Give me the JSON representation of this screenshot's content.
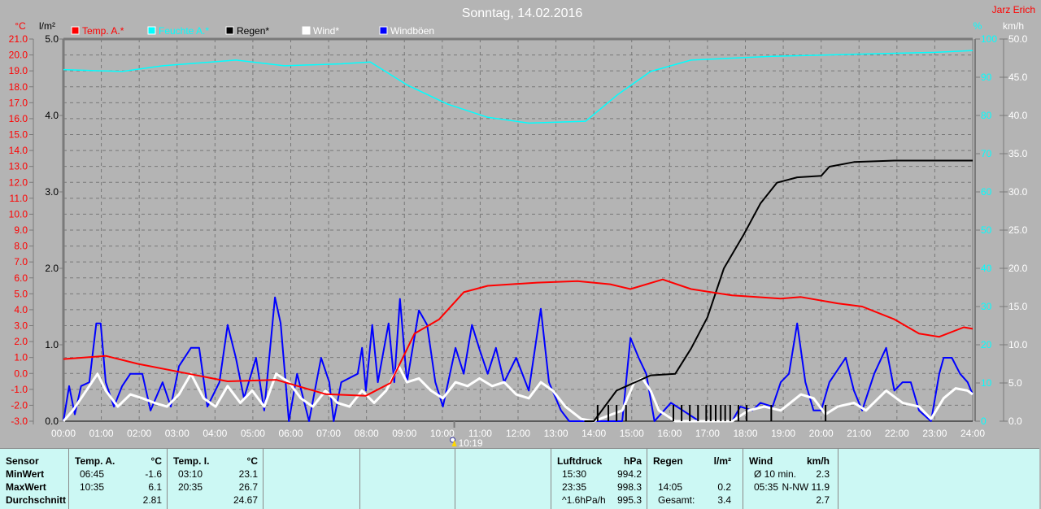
{
  "header": {
    "title": "Sonntag, 14.02.2016",
    "author": "Jarz Erich"
  },
  "colors": {
    "temp": "#ff0000",
    "humidity": "#00ffff",
    "rain": "#000000",
    "wind": "#ffffff",
    "gusts": "#0000ff",
    "background": "#b4b4b4",
    "table": "#ccf8f4"
  },
  "chart_data": {
    "type": "line",
    "title": "Sonntag, 14.02.2016",
    "grid": true,
    "legend_placement": "top",
    "x_range": [
      "00:00",
      "24:00"
    ],
    "x_ticks": [
      "00:00",
      "01:00",
      "02:00",
      "03:00",
      "04:00",
      "05:00",
      "06:00",
      "07:00",
      "08:00",
      "09:00",
      "10:00",
      "11:00",
      "12:00",
      "13:00",
      "14:00",
      "15:00",
      "16:00",
      "17:00",
      "18:00",
      "19:00",
      "20:00",
      "21:00",
      "22:00",
      "23:00",
      "24:00"
    ],
    "axes": {
      "temp": {
        "unit": "°C",
        "range": [
          -3.0,
          21.0
        ],
        "ticks": [
          "21.0",
          "20.0",
          "19.0",
          "18.0",
          "17.0",
          "16.0",
          "15.0",
          "14.0",
          "13.0",
          "12.0",
          "11.0",
          "10.0",
          "9.0",
          "8.0",
          "7.0",
          "6.0",
          "5.0",
          "4.0",
          "3.0",
          "2.0",
          "1.0",
          "0.0",
          "-1.0",
          "-2.0",
          "-3.0"
        ]
      },
      "rain": {
        "unit": "l/m²",
        "range": [
          0,
          5.0
        ],
        "ticks": [
          "5.0",
          "4.0",
          "3.0",
          "2.0",
          "1.0",
          "0.0"
        ]
      },
      "humidity": {
        "unit": "%",
        "range": [
          0,
          100
        ],
        "ticks": [
          "100",
          "90",
          "80",
          "70",
          "60",
          "50",
          "40",
          "30",
          "20",
          "10",
          "0"
        ]
      },
      "wind": {
        "unit": "km/h",
        "range": [
          0,
          50.0
        ],
        "ticks": [
          "50.0",
          "45.0",
          "40.0",
          "35.0",
          "30.0",
          "25.0",
          "20.0",
          "15.0",
          "10.0",
          "5.0",
          "0.0"
        ]
      }
    },
    "series": [
      {
        "name": "Temp. A.*",
        "axis": "temp",
        "color": "#ff0000",
        "points": [
          [
            "00:00",
            0.9
          ],
          [
            "01:07",
            1.1
          ],
          [
            "01:58",
            0.6
          ],
          [
            "03:16",
            0.0
          ],
          [
            "04:20",
            -0.5
          ],
          [
            "05:37",
            -0.4
          ],
          [
            "06:55",
            -1.3
          ],
          [
            "07:59",
            -1.4
          ],
          [
            "08:38",
            -0.6
          ],
          [
            "09:16",
            2.5
          ],
          [
            "09:55",
            3.4
          ],
          [
            "10:34",
            5.1
          ],
          [
            "11:12",
            5.5
          ],
          [
            "12:30",
            5.7
          ],
          [
            "13:34",
            5.8
          ],
          [
            "14:26",
            5.6
          ],
          [
            "14:58",
            5.3
          ],
          [
            "15:49",
            5.9
          ],
          [
            "16:34",
            5.3
          ],
          [
            "17:39",
            4.9
          ],
          [
            "18:56",
            4.7
          ],
          [
            "19:28",
            4.8
          ],
          [
            "20:26",
            4.4
          ],
          [
            "21:05",
            4.2
          ],
          [
            "21:56",
            3.4
          ],
          [
            "22:35",
            2.5
          ],
          [
            "23:07",
            2.3
          ],
          [
            "23:46",
            2.9
          ],
          [
            "24:00",
            2.8
          ]
        ]
      },
      {
        "name": "Feuchte A.*",
        "axis": "humidity",
        "color": "#00ffff",
        "points": [
          [
            "00:00",
            92
          ],
          [
            "01:33",
            91.5
          ],
          [
            "02:37",
            93
          ],
          [
            "04:33",
            94.5
          ],
          [
            "05:50",
            93
          ],
          [
            "07:20",
            93.5
          ],
          [
            "08:06",
            94
          ],
          [
            "09:04",
            88
          ],
          [
            "10:08",
            83
          ],
          [
            "11:12",
            79.5
          ],
          [
            "12:17",
            78
          ],
          [
            "13:47",
            78.5
          ],
          [
            "14:38",
            85.5
          ],
          [
            "15:30",
            91.5
          ],
          [
            "16:34",
            94.5
          ],
          [
            "18:43",
            95.5
          ],
          [
            "20:52",
            96
          ],
          [
            "23:01",
            96.5
          ],
          [
            "24:00",
            97
          ]
        ]
      },
      {
        "name": "Regen*",
        "axis": "rain",
        "color": "#000000",
        "points": [
          [
            "13:45",
            0
          ],
          [
            "14:00",
            0
          ],
          [
            "14:36",
            0.4
          ],
          [
            "15:30",
            0.6
          ],
          [
            "16:09",
            0.62
          ],
          [
            "16:34",
            0.95
          ],
          [
            "17:00",
            1.36
          ],
          [
            "17:26",
            2.0
          ],
          [
            "17:58",
            2.45
          ],
          [
            "18:24",
            2.85
          ],
          [
            "18:50",
            3.12
          ],
          [
            "19:22",
            3.19
          ],
          [
            "20:00",
            3.21
          ],
          [
            "20:13",
            3.33
          ],
          [
            "20:52",
            3.39
          ],
          [
            "21:56",
            3.41
          ],
          [
            "24:00",
            3.41
          ]
        ],
        "events": [
          "14:06",
          "14:23",
          "14:36",
          "14:51",
          "16:06",
          "16:19",
          "16:32",
          "16:45",
          "16:58",
          "17:05",
          "17:13",
          "17:21",
          "17:28",
          "17:36",
          "17:49",
          "18:02",
          "18:41",
          "20:07"
        ]
      },
      {
        "name": "Wind*",
        "axis": "wind",
        "color": "#ffffff",
        "points": [
          [
            "00:00",
            0
          ],
          [
            "00:15",
            1.4
          ],
          [
            "00:41",
            4.6
          ],
          [
            "00:54",
            6.2
          ],
          [
            "01:07",
            4.0
          ],
          [
            "01:26",
            1.9
          ],
          [
            "01:46",
            3.5
          ],
          [
            "02:05",
            3.0
          ],
          [
            "02:24",
            2.4
          ],
          [
            "02:44",
            1.9
          ],
          [
            "03:03",
            3.5
          ],
          [
            "03:22",
            6.2
          ],
          [
            "03:42",
            3.0
          ],
          [
            "04:01",
            1.9
          ],
          [
            "04:20",
            4.6
          ],
          [
            "04:40",
            2.4
          ],
          [
            "04:59",
            4.0
          ],
          [
            "05:18",
            1.9
          ],
          [
            "05:37",
            6.2
          ],
          [
            "05:57",
            5.1
          ],
          [
            "06:16",
            3.0
          ],
          [
            "06:35",
            1.9
          ],
          [
            "06:55",
            4.0
          ],
          [
            "07:14",
            2.4
          ],
          [
            "07:33",
            1.9
          ],
          [
            "07:53",
            4.0
          ],
          [
            "08:12",
            2.4
          ],
          [
            "08:31",
            4.0
          ],
          [
            "08:51",
            7.2
          ],
          [
            "09:04",
            5.1
          ],
          [
            "09:23",
            5.6
          ],
          [
            "09:42",
            4.0
          ],
          [
            "10:01",
            3.0
          ],
          [
            "10:21",
            5.1
          ],
          [
            "10:40",
            4.6
          ],
          [
            "10:59",
            5.6
          ],
          [
            "11:19",
            4.6
          ],
          [
            "11:38",
            5.1
          ],
          [
            "11:57",
            3.5
          ],
          [
            "12:17",
            3.0
          ],
          [
            "12:36",
            5.1
          ],
          [
            "12:55",
            4.0
          ],
          [
            "13:15",
            1.9
          ],
          [
            "13:40",
            0.3
          ],
          [
            "14:00",
            0
          ],
          [
            "14:45",
            1.4
          ],
          [
            "15:04",
            5.1
          ],
          [
            "15:17",
            5.6
          ],
          [
            "15:30",
            4.0
          ],
          [
            "15:43",
            1.4
          ],
          [
            "16:09",
            0
          ],
          [
            "17:39",
            0
          ],
          [
            "18:05",
            1.4
          ],
          [
            "18:30",
            1.9
          ],
          [
            "18:56",
            1.4
          ],
          [
            "19:28",
            3.5
          ],
          [
            "19:48",
            3.0
          ],
          [
            "20:07",
            0.9
          ],
          [
            "20:26",
            1.9
          ],
          [
            "20:52",
            2.4
          ],
          [
            "21:11",
            1.4
          ],
          [
            "21:43",
            4.0
          ],
          [
            "22:09",
            2.4
          ],
          [
            "22:35",
            1.9
          ],
          [
            "22:54",
            0.3
          ],
          [
            "23:14",
            3.0
          ],
          [
            "23:33",
            4.3
          ],
          [
            "23:52",
            4.0
          ],
          [
            "24:00",
            3.5
          ]
        ]
      },
      {
        "name": "Windböen",
        "axis": "wind",
        "color": "#0000ff",
        "points": [
          [
            "00:00",
            0
          ],
          [
            "00:09",
            4.6
          ],
          [
            "00:18",
            0.9
          ],
          [
            "00:28",
            4.6
          ],
          [
            "00:41",
            5.1
          ],
          [
            "00:52",
            12.8
          ],
          [
            "00:59",
            12.8
          ],
          [
            "01:07",
            5.1
          ],
          [
            "01:20",
            1.9
          ],
          [
            "01:33",
            4.6
          ],
          [
            "01:46",
            6.2
          ],
          [
            "02:05",
            6.2
          ],
          [
            "02:18",
            1.4
          ],
          [
            "02:37",
            5.1
          ],
          [
            "02:50",
            1.9
          ],
          [
            "03:03",
            7.2
          ],
          [
            "03:22",
            9.6
          ],
          [
            "03:35",
            9.6
          ],
          [
            "03:48",
            1.9
          ],
          [
            "04:07",
            5.1
          ],
          [
            "04:20",
            12.6
          ],
          [
            "04:33",
            8.3
          ],
          [
            "04:46",
            3.0
          ],
          [
            "05:05",
            8.3
          ],
          [
            "05:18",
            1.4
          ],
          [
            "05:35",
            16.2
          ],
          [
            "05:44",
            12.8
          ],
          [
            "05:57",
            0
          ],
          [
            "06:10",
            6.2
          ],
          [
            "06:29",
            0
          ],
          [
            "06:48",
            8.3
          ],
          [
            "07:01",
            5.1
          ],
          [
            "07:08",
            0
          ],
          [
            "07:20",
            5.1
          ],
          [
            "07:46",
            6.2
          ],
          [
            "07:53",
            9.6
          ],
          [
            "07:59",
            4.0
          ],
          [
            "08:09",
            12.6
          ],
          [
            "08:18",
            5.1
          ],
          [
            "08:35",
            12.8
          ],
          [
            "08:44",
            5.1
          ],
          [
            "08:53",
            16.0
          ],
          [
            "09:04",
            5.1
          ],
          [
            "09:23",
            14.5
          ],
          [
            "09:36",
            12.6
          ],
          [
            "09:49",
            5.1
          ],
          [
            "10:01",
            1.9
          ],
          [
            "10:21",
            9.6
          ],
          [
            "10:34",
            6.2
          ],
          [
            "10:47",
            12.6
          ],
          [
            "10:59",
            9.4
          ],
          [
            "11:12",
            6.2
          ],
          [
            "11:25",
            9.6
          ],
          [
            "11:38",
            5.1
          ],
          [
            "11:57",
            8.3
          ],
          [
            "12:17",
            4.0
          ],
          [
            "12:36",
            14.7
          ],
          [
            "12:49",
            5.1
          ],
          [
            "13:08",
            1.4
          ],
          [
            "13:21",
            0
          ],
          [
            "14:45",
            0
          ],
          [
            "14:58",
            10.9
          ],
          [
            "15:11",
            8.3
          ],
          [
            "15:23",
            6.2
          ],
          [
            "15:36",
            0
          ],
          [
            "16:02",
            2.4
          ],
          [
            "16:21",
            1.4
          ],
          [
            "16:47",
            0
          ],
          [
            "17:39",
            0
          ],
          [
            "17:52",
            1.9
          ],
          [
            "18:11",
            1.4
          ],
          [
            "18:24",
            2.4
          ],
          [
            "18:43",
            1.9
          ],
          [
            "18:56",
            5.1
          ],
          [
            "19:09",
            6.2
          ],
          [
            "19:22",
            12.8
          ],
          [
            "19:35",
            5.1
          ],
          [
            "19:48",
            1.4
          ],
          [
            "20:00",
            1.4
          ],
          [
            "20:13",
            5.1
          ],
          [
            "20:39",
            8.3
          ],
          [
            "20:52",
            4.0
          ],
          [
            "21:05",
            1.4
          ],
          [
            "21:24",
            6.2
          ],
          [
            "21:43",
            9.6
          ],
          [
            "21:56",
            4.0
          ],
          [
            "22:09",
            5.1
          ],
          [
            "22:22",
            5.1
          ],
          [
            "22:35",
            1.4
          ],
          [
            "22:54",
            0
          ],
          [
            "23:07",
            6.2
          ],
          [
            "23:14",
            8.3
          ],
          [
            "23:27",
            8.3
          ],
          [
            "23:40",
            6.2
          ],
          [
            "23:52",
            5.1
          ],
          [
            "24:00",
            3.5
          ]
        ]
      }
    ],
    "annotations": [
      {
        "label": "10:19",
        "icon": "sun-icon",
        "time": "10:19"
      }
    ]
  },
  "table": {
    "columns": [
      {
        "rows": [
          [
            "Sensor",
            ""
          ],
          [
            "MinWert",
            ""
          ],
          [
            "MaxWert",
            ""
          ],
          [
            "Durchschnitt",
            ""
          ]
        ]
      },
      {
        "rows": [
          [
            "Temp. A.",
            "°C"
          ],
          [
            "06:45",
            "-1.6"
          ],
          [
            "10:35",
            "6.1"
          ],
          [
            "",
            "2.81"
          ]
        ]
      },
      {
        "rows": [
          [
            "Temp. I.",
            "°C"
          ],
          [
            "03:10",
            "23.1"
          ],
          [
            "20:35",
            "26.7"
          ],
          [
            "",
            "24.67"
          ]
        ]
      },
      {
        "rows": []
      },
      {
        "rows": []
      },
      {
        "rows": []
      },
      {
        "rows": [
          [
            "Luftdruck",
            "hPa"
          ],
          [
            "15:30",
            "994.2"
          ],
          [
            "23:35",
            "998.3"
          ],
          [
            "^1.6hPa/h",
            "995.3"
          ]
        ]
      },
      {
        "rows": [
          [
            "Regen",
            "l/m²"
          ],
          [
            "",
            ""
          ],
          [
            "14:05",
            "0.2"
          ],
          [
            "Gesamt:",
            "3.4"
          ]
        ]
      },
      {
        "rows": [
          [
            "Wind",
            "km/h"
          ],
          [
            "Ø 10 min.",
            "2.3"
          ],
          [
            "05:35",
            "N-NW 11.9"
          ],
          [
            "",
            "2.7"
          ]
        ]
      },
      {
        "rows": []
      }
    ]
  }
}
